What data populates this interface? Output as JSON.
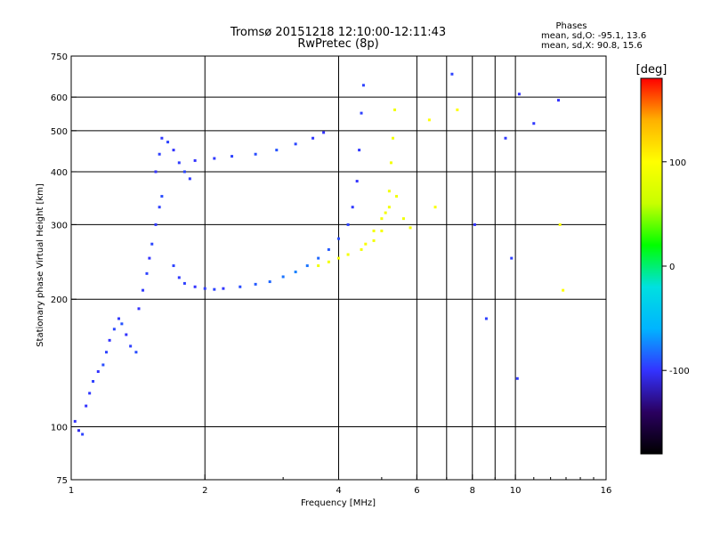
{
  "chart_data": {
    "type": "scatter",
    "title": "Tromsø 20151218 12:10:00-12:11:43",
    "subtitle": "RwPretec (8p)",
    "xlabel": "Frequency [MHz]",
    "ylabel": "Stationary phase Virtual Height [km]",
    "x_scale": "log",
    "y_scale": "log",
    "xlim": [
      1,
      16
    ],
    "ylim": [
      75,
      750
    ],
    "x_ticks": [
      {
        "value": 1,
        "label": "1"
      },
      {
        "value": 2,
        "label": "2"
      },
      {
        "value": 4,
        "label": "4"
      },
      {
        "value": 6,
        "label": "6"
      },
      {
        "value": 8,
        "label": "8"
      },
      {
        "value": 10,
        "label": "10"
      },
      {
        "value": 16,
        "label": "16"
      }
    ],
    "x_grid": [
      2,
      4,
      6,
      8,
      10
    ],
    "x_minor_grid": [
      7,
      9
    ],
    "y_ticks": [
      {
        "value": 75,
        "label": "75"
      },
      {
        "value": 100,
        "label": "100"
      },
      {
        "value": 200,
        "label": "200"
      },
      {
        "value": 300,
        "label": "300"
      },
      {
        "value": 400,
        "label": "400"
      },
      {
        "value": 500,
        "label": "500"
      },
      {
        "value": 600,
        "label": "600"
      },
      {
        "value": 750,
        "label": "750"
      }
    ],
    "y_grid": [
      100,
      200,
      300,
      400,
      500,
      600
    ],
    "grid": true,
    "legend_title": "Phases",
    "legend_lines": [
      "mean, sd,O: -95.1, 13.6",
      "mean, sd,X:  90.8, 15.6"
    ],
    "colorbar": {
      "label": "[deg]",
      "range": [
        -180,
        180
      ],
      "ticks": [
        {
          "value": 100,
          "label": "100"
        },
        {
          "value": 0,
          "label": "0"
        },
        {
          "value": -100,
          "label": "-100"
        }
      ],
      "stops": [
        "#000000",
        "#2a0060",
        "#3333ff",
        "#00b4ff",
        "#00e0e0",
        "#00ff00",
        "#c8ff00",
        "#ffff00",
        "#ffb000",
        "#ff0000"
      ]
    },
    "series": [
      {
        "points": [
          [
            1.02,
            103,
            -100
          ],
          [
            1.04,
            98,
            -105
          ],
          [
            1.06,
            96,
            -95
          ],
          [
            1.08,
            112,
            -100
          ],
          [
            1.1,
            120,
            -98
          ],
          [
            1.12,
            128,
            -96
          ],
          [
            1.15,
            135,
            -100
          ],
          [
            1.18,
            140,
            -92
          ],
          [
            1.2,
            150,
            -95
          ],
          [
            1.22,
            160,
            -100
          ],
          [
            1.25,
            170,
            -94
          ],
          [
            1.28,
            180,
            -98
          ],
          [
            1.3,
            175,
            -90
          ],
          [
            1.33,
            165,
            -100
          ],
          [
            1.36,
            155,
            -96
          ],
          [
            1.4,
            150,
            -92
          ],
          [
            1.42,
            190,
            -100
          ],
          [
            1.45,
            210,
            -98
          ],
          [
            1.48,
            230,
            -95
          ],
          [
            1.5,
            250,
            -100
          ],
          [
            1.52,
            270,
            -94
          ],
          [
            1.55,
            300,
            -98
          ],
          [
            1.58,
            330,
            -96
          ],
          [
            1.6,
            350,
            -92
          ],
          [
            1.55,
            400,
            -100
          ],
          [
            1.58,
            440,
            -96
          ],
          [
            1.6,
            480,
            -98
          ],
          [
            1.65,
            470,
            -95
          ],
          [
            1.7,
            450,
            -100
          ],
          [
            1.75,
            420,
            -97
          ],
          [
            1.8,
            400,
            -94
          ],
          [
            1.85,
            385,
            -98
          ],
          [
            1.7,
            240,
            -95
          ],
          [
            1.75,
            225,
            -98
          ],
          [
            1.8,
            218,
            -96
          ],
          [
            1.9,
            214,
            -100
          ],
          [
            2.0,
            212,
            -97
          ],
          [
            2.1,
            211,
            -95
          ],
          [
            2.2,
            212,
            -99
          ],
          [
            2.4,
            214,
            -92
          ],
          [
            2.6,
            217,
            -88
          ],
          [
            2.8,
            220,
            -84
          ],
          [
            3.0,
            226,
            -80
          ],
          [
            3.2,
            232,
            -76
          ],
          [
            3.4,
            240,
            -80
          ],
          [
            3.6,
            250,
            -84
          ],
          [
            3.8,
            262,
            -88
          ],
          [
            4.0,
            278,
            -92
          ],
          [
            4.2,
            300,
            -95
          ],
          [
            4.3,
            330,
            -98
          ],
          [
            4.4,
            380,
            -100
          ],
          [
            4.45,
            450,
            -98
          ],
          [
            4.5,
            550,
            -96
          ],
          [
            4.55,
            640,
            -95
          ],
          [
            1.9,
            425,
            -100
          ],
          [
            2.1,
            430,
            -98
          ],
          [
            2.3,
            435,
            -95
          ],
          [
            2.6,
            440,
            -92
          ],
          [
            2.9,
            450,
            -90
          ],
          [
            3.2,
            465,
            -94
          ],
          [
            3.5,
            480,
            -98
          ],
          [
            3.7,
            495,
            -100
          ],
          [
            3.6,
            240,
            90
          ],
          [
            3.8,
            245,
            92
          ],
          [
            4.0,
            250,
            94
          ],
          [
            4.2,
            255,
            92
          ],
          [
            4.5,
            262,
            90
          ],
          [
            4.8,
            275,
            92
          ],
          [
            5.0,
            290,
            94
          ],
          [
            5.1,
            320,
            92
          ],
          [
            5.2,
            360,
            90
          ],
          [
            5.25,
            420,
            92
          ],
          [
            5.3,
            480,
            91
          ],
          [
            5.35,
            560,
            90
          ],
          [
            4.6,
            270,
            95
          ],
          [
            4.8,
            290,
            93
          ],
          [
            5.0,
            310,
            92
          ],
          [
            5.2,
            330,
            91
          ],
          [
            5.4,
            350,
            90
          ],
          [
            5.6,
            310,
            88
          ],
          [
            5.8,
            295,
            92
          ],
          [
            6.4,
            530,
            100
          ],
          [
            6.6,
            330,
            95
          ],
          [
            7.2,
            680,
            -95
          ],
          [
            7.4,
            560,
            100
          ],
          [
            8.1,
            300,
            -100
          ],
          [
            8.6,
            180,
            -96
          ],
          [
            9.5,
            480,
            -98
          ],
          [
            10.2,
            610,
            -100
          ],
          [
            11.0,
            520,
            -98
          ],
          [
            12.5,
            590,
            -100
          ],
          [
            12.6,
            300,
            98
          ],
          [
            12.8,
            210,
            100
          ],
          [
            9.8,
            250,
            -96
          ],
          [
            10.1,
            130,
            -98
          ]
        ]
      }
    ]
  }
}
